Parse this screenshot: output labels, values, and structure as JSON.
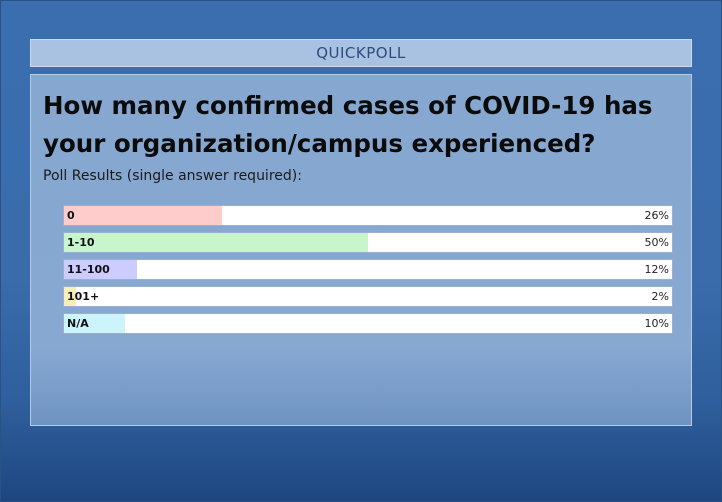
{
  "title_bar": {
    "label": "QUICKPOLL"
  },
  "poll": {
    "question": "How many confirmed cases of COVID-19 has your organization/campus experienced?",
    "subtitle": "Poll Results (single answer required):",
    "results": [
      {
        "label": "0",
        "percent_text": "26%",
        "value": 26,
        "color": "#ffcccc"
      },
      {
        "label": "1-10",
        "percent_text": "50%",
        "value": 50,
        "color": "#c8f5cc"
      },
      {
        "label": "11-100",
        "percent_text": "12%",
        "value": 12,
        "color": "#ccccff"
      },
      {
        "label": "101+",
        "percent_text": "2%",
        "value": 2,
        "color": "#f7efb5"
      },
      {
        "label": "N/A",
        "percent_text": "10%",
        "value": 10,
        "color": "#ccf5fb"
      }
    ]
  }
}
